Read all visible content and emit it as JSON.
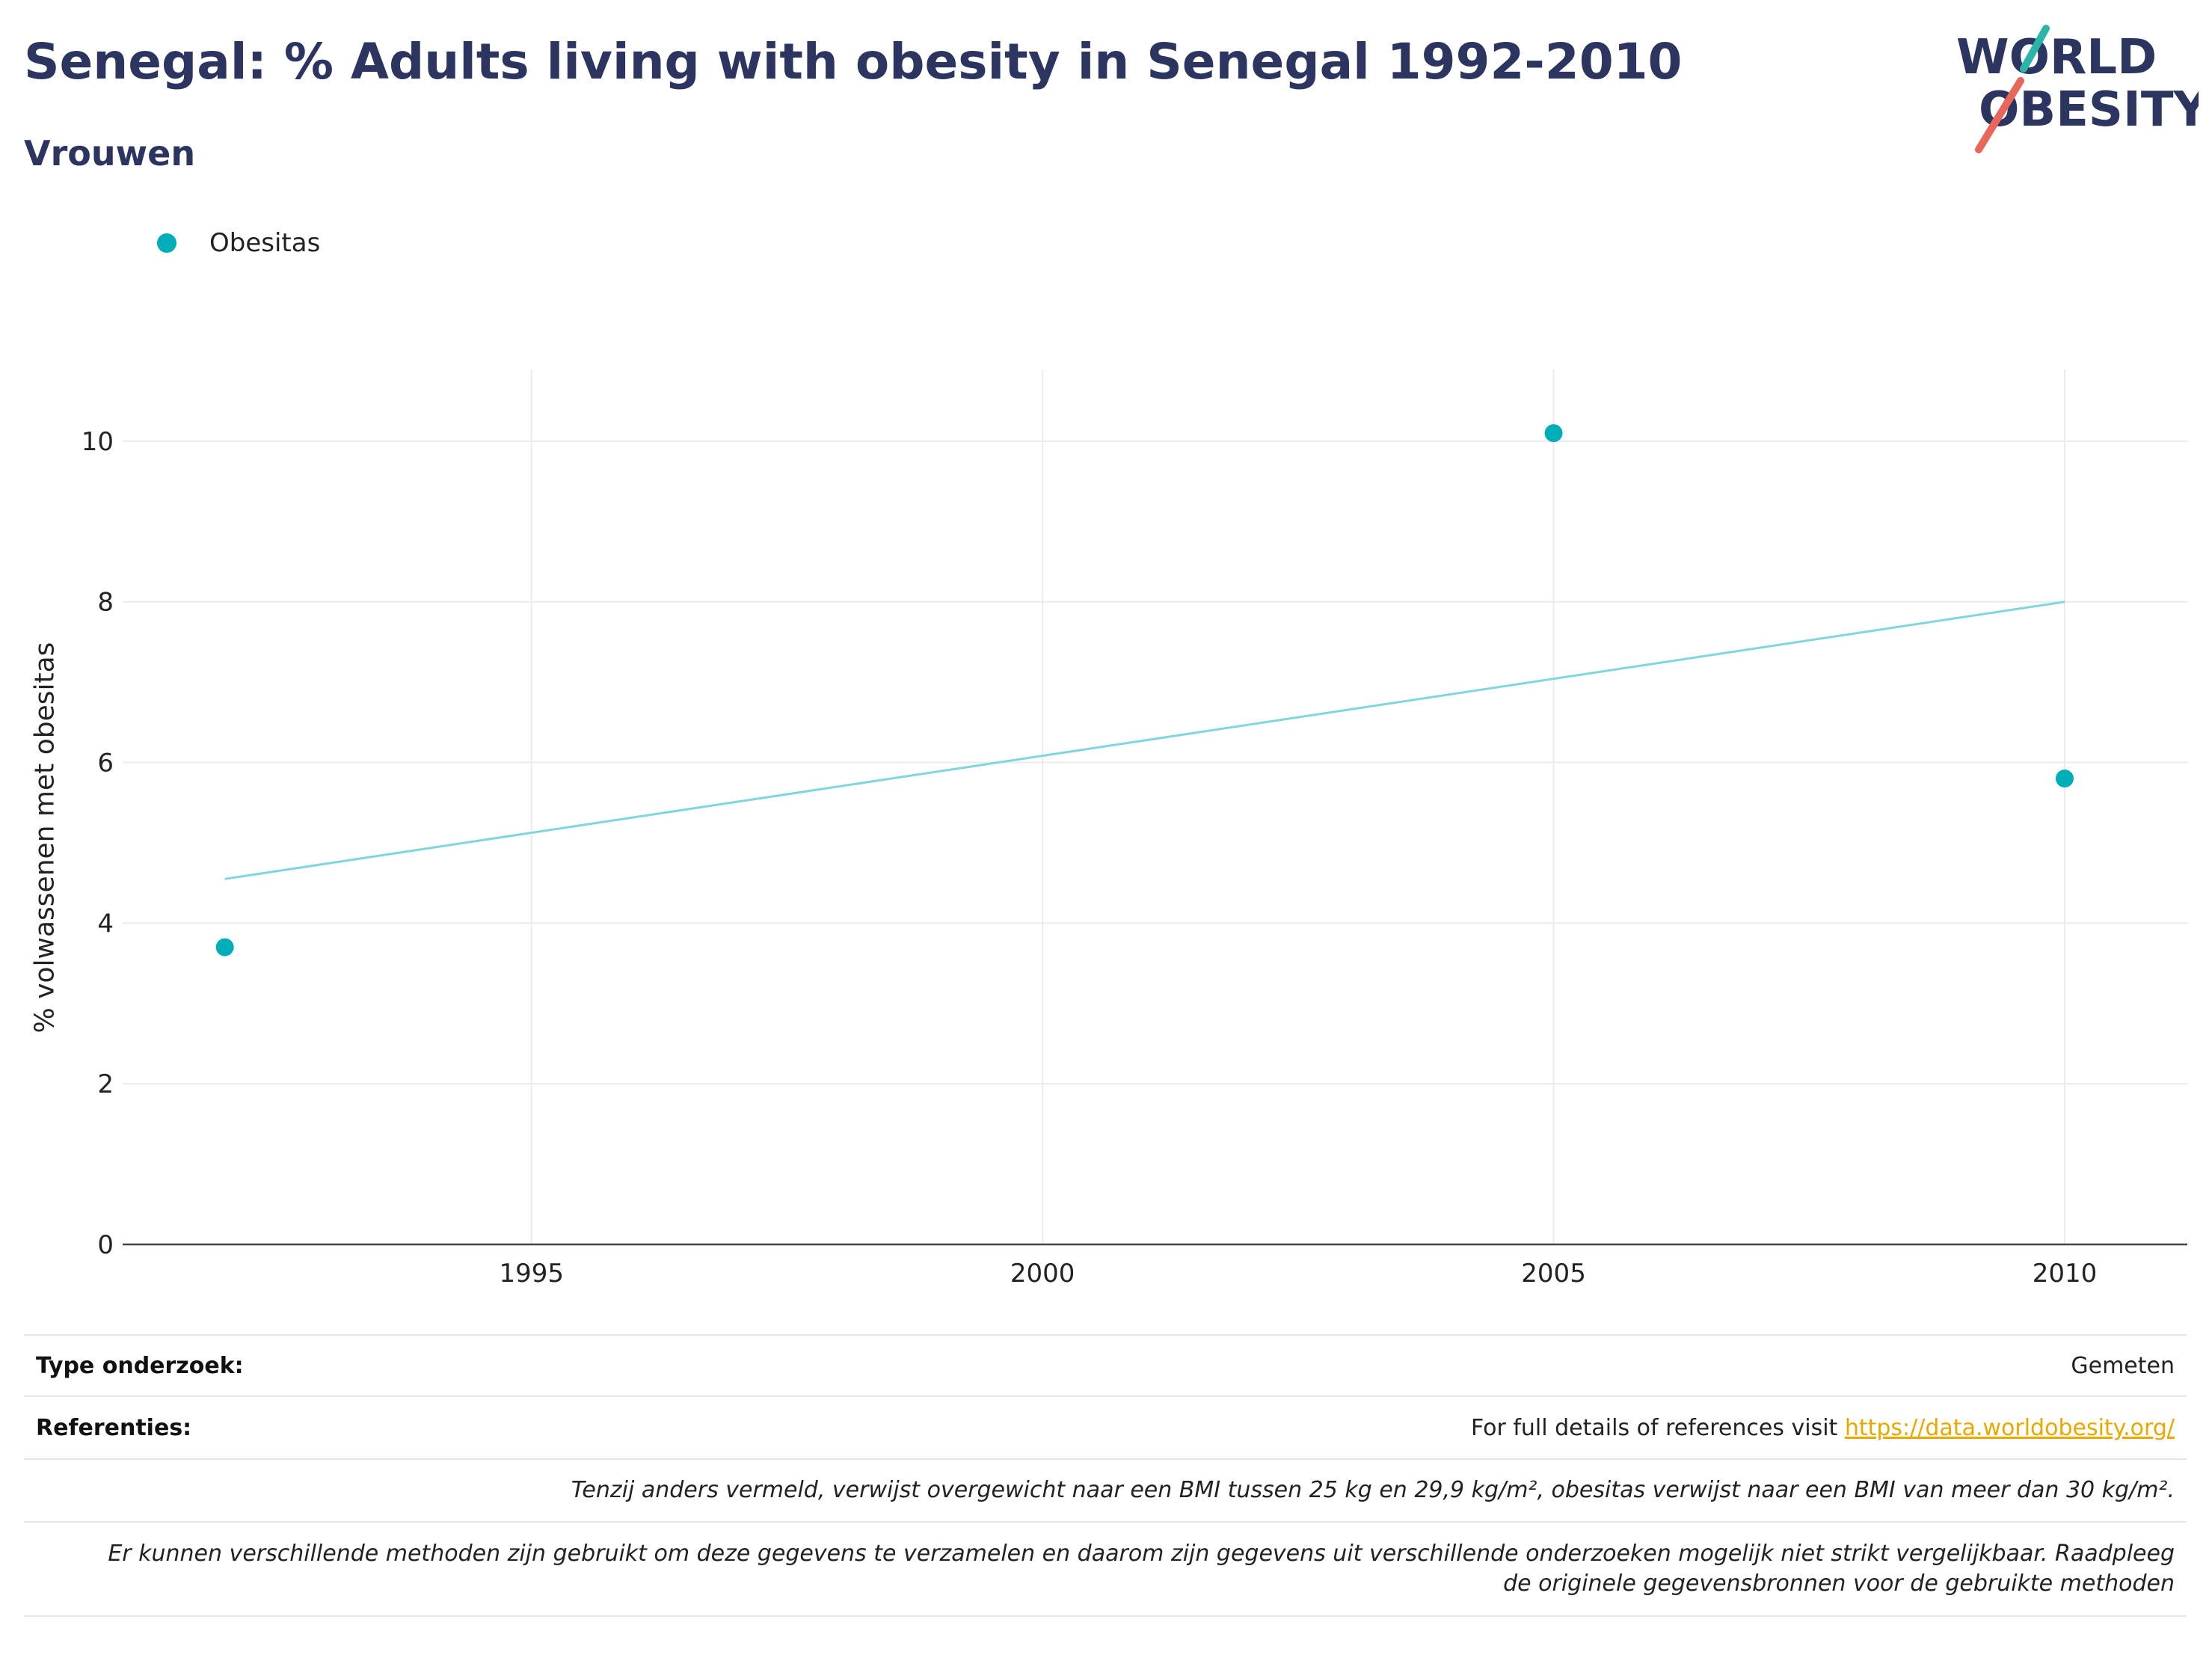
{
  "header": {
    "title": "Senegal: % Adults living with obesity in Senegal 1992-2010",
    "subtitle": "Vrouwen"
  },
  "logo": {
    "line1": "WORLD",
    "line2": "OBESITY",
    "colors": {
      "text": "#2b3560",
      "teal": "#2bb5a8",
      "coral": "#e8675a"
    }
  },
  "legend": {
    "series_label": "Obesitas"
  },
  "chart_data": {
    "type": "scatter",
    "ylabel": "% volwassenen met obesitas",
    "xlabel": "",
    "xlim": [
      1991,
      2011.2
    ],
    "ylim": [
      0,
      10.8
    ],
    "x_ticks": [
      1995,
      2000,
      2005,
      2010
    ],
    "y_ticks": [
      0,
      2,
      4,
      6,
      8,
      10
    ],
    "grid": true,
    "legend_position": "top-left",
    "series": [
      {
        "name": "Obesitas",
        "color": "#00aeb9",
        "points": [
          {
            "x": 1992,
            "y": 3.7
          },
          {
            "x": 2005,
            "y": 10.1
          },
          {
            "x": 2010,
            "y": 5.8
          }
        ]
      }
    ],
    "trendline": {
      "color": "#7fd6dc",
      "points": [
        {
          "x": 1992,
          "y": 4.55
        },
        {
          "x": 2010,
          "y": 8.0
        }
      ]
    }
  },
  "info": {
    "survey_type_label": "Type onderzoek:",
    "survey_type_value": "Gemeten",
    "references_label": "Referenties:",
    "references_text": "For full details of references visit ",
    "references_link": "https://data.worldobesity.org/",
    "note1": "Tenzij anders vermeld, verwijst overgewicht naar een BMI tussen 25 kg en 29,9 kg/m², obesitas verwijst naar een BMI van meer dan 30 kg/m².",
    "note2_line1": "Er kunnen verschillende methoden zijn gebruikt om deze gegevens te verzamelen en daarom zijn gegevens uit verschillende onderzoeken mogelijk niet strikt vergelijkbaar. Raadpleeg",
    "note2_line2": "de originele gegevensbronnen voor de gebruikte methoden"
  }
}
